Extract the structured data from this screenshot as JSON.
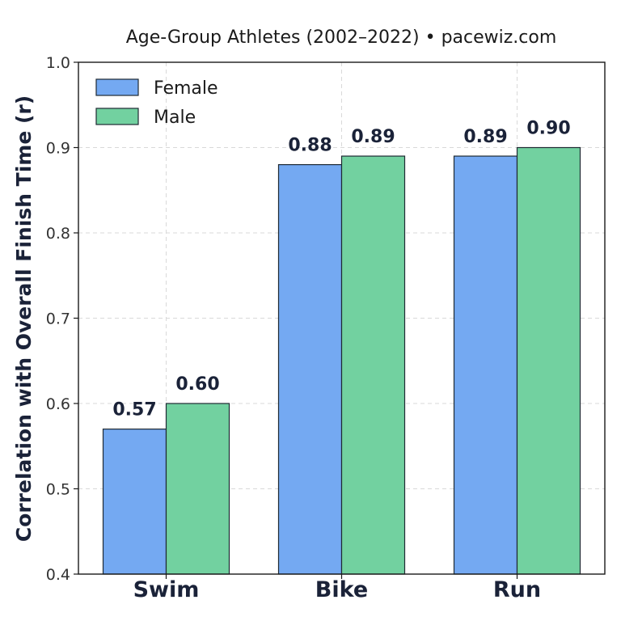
{
  "chart_data": {
    "type": "bar",
    "title": "Age-Group Athletes (2002–2022) • pacewiz.com",
    "xlabel": "",
    "ylabel": "Correlation with Overall Finish Time (r)",
    "categories": [
      "Swim",
      "Bike",
      "Run"
    ],
    "ylim": [
      0.4,
      1.0
    ],
    "yticks": [
      "0.4",
      "0.5",
      "0.6",
      "0.7",
      "0.8",
      "0.9",
      "1.0"
    ],
    "grid": true,
    "legend_position": "top-left",
    "series": [
      {
        "name": "Female",
        "color": "#74a9f2",
        "values": [
          0.57,
          0.88,
          0.89
        ],
        "labels": [
          "0.57",
          "0.88",
          "0.89"
        ]
      },
      {
        "name": "Male",
        "color": "#72d1a0",
        "values": [
          0.6,
          0.89,
          0.9
        ],
        "labels": [
          "0.60",
          "0.89",
          "0.90"
        ]
      }
    ]
  }
}
